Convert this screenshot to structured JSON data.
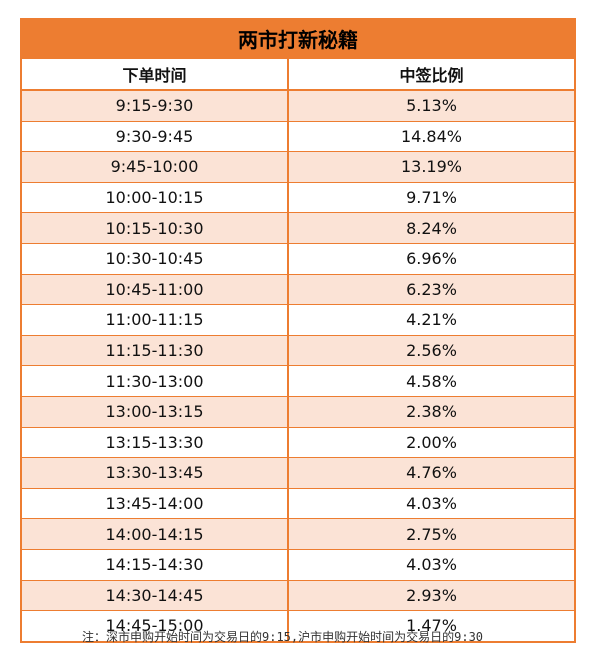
{
  "title": "两市打新秘籍",
  "headers": {
    "time": "下单时间",
    "ratio": "中签比例"
  },
  "rows": [
    {
      "time": "9:15-9:30",
      "ratio": "5.13%"
    },
    {
      "time": "9:30-9:45",
      "ratio": "14.84%"
    },
    {
      "time": "9:45-10:00",
      "ratio": "13.19%"
    },
    {
      "time": "10:00-10:15",
      "ratio": "9.71%"
    },
    {
      "time": "10:15-10:30",
      "ratio": "8.24%"
    },
    {
      "time": "10:30-10:45",
      "ratio": "6.96%"
    },
    {
      "time": "10:45-11:00",
      "ratio": "6.23%"
    },
    {
      "time": "11:00-11:15",
      "ratio": "4.21%"
    },
    {
      "time": "11:15-11:30",
      "ratio": "2.56%"
    },
    {
      "time": "11:30-13:00",
      "ratio": "4.58%"
    },
    {
      "time": "13:00-13:15",
      "ratio": "2.38%"
    },
    {
      "time": "13:15-13:30",
      "ratio": "2.00%"
    },
    {
      "time": "13:30-13:45",
      "ratio": "4.76%"
    },
    {
      "time": "13:45-14:00",
      "ratio": "4.03%"
    },
    {
      "time": "14:00-14:15",
      "ratio": "2.75%"
    },
    {
      "time": "14:15-14:30",
      "ratio": "4.03%"
    },
    {
      "time": "14:30-14:45",
      "ratio": "2.93%"
    },
    {
      "time": "14:45-15:00",
      "ratio": "1.47%"
    }
  ],
  "note": "注：深市申购开始时间为交易日的9:15,沪市申购开始时间为交易日的9:30",
  "colors": {
    "accent": "#ED7D31",
    "stripe": "#FBE3D6"
  }
}
